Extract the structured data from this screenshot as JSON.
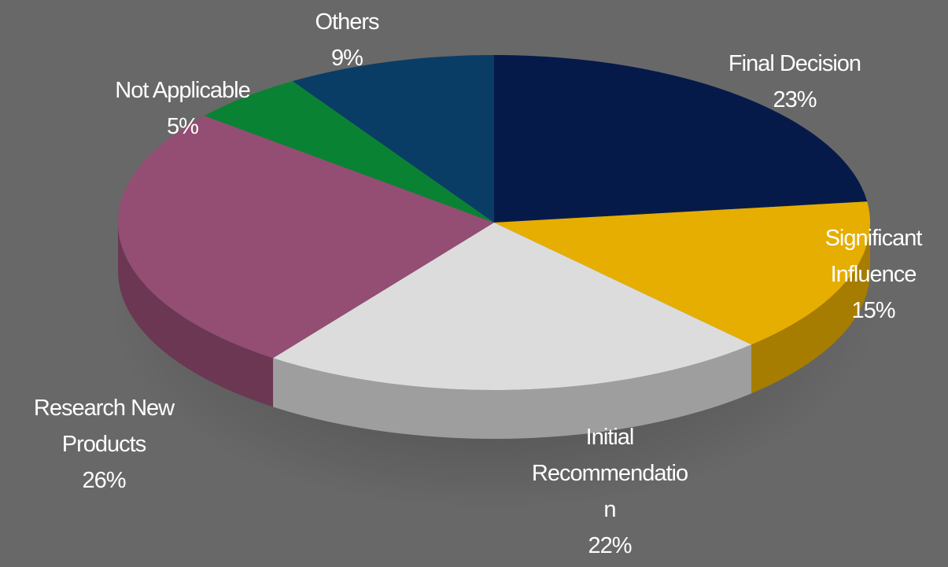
{
  "chart_data": {
    "type": "pie",
    "title": "",
    "style": "3d-tilted",
    "slices": [
      {
        "label_lines": [
          "Final Decision"
        ],
        "value_label": "23%",
        "value": 23,
        "color": "#061a4a"
      },
      {
        "label_lines": [
          "Significant",
          "Influence"
        ],
        "value_label": "15%",
        "value": 15,
        "color": "#e6ae00"
      },
      {
        "label_lines": [
          "Initial",
          "Recommendatio",
          "n"
        ],
        "value_label": "22%",
        "value": 22,
        "color": "#dcdcdc"
      },
      {
        "label_lines": [
          "Research New",
          "Products"
        ],
        "value_label": "26%",
        "value": 26,
        "color": "#944d73"
      },
      {
        "label_lines": [
          "Not Applicable"
        ],
        "value_label": "5%",
        "value": 5,
        "color": "#0a8233"
      },
      {
        "label_lines": [
          "Others"
        ],
        "value_label": "9%",
        "value": 9,
        "color": "#0a3d66"
      }
    ]
  }
}
